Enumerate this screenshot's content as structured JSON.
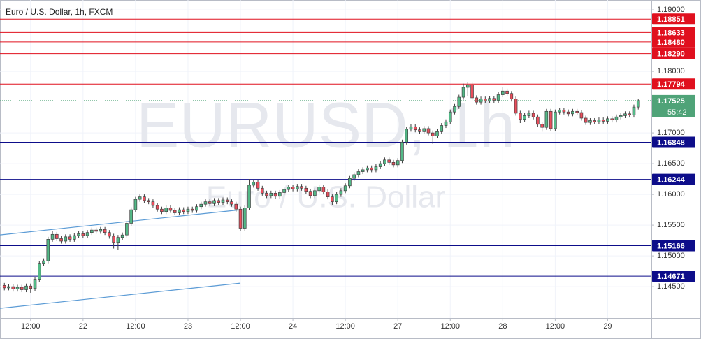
{
  "chart_data": {
    "type": "candlestick",
    "title": "Euro / U.S. Dollar, 1h, FXCM",
    "watermark": "EURUSD, 1h",
    "watermark_sub": "Euro / U.S. Dollar",
    "up_color": "#53b987",
    "down_color": "#eb4d5c",
    "ylim": [
      1.1399,
      1.1916
    ],
    "xlim": [
      -1,
      148
    ],
    "grid": true,
    "yticks": [
      {
        "value": 1.19,
        "label": "1.19000"
      },
      {
        "value": 1.18,
        "label": "1.18000"
      },
      {
        "value": 1.17,
        "label": "1.17000"
      },
      {
        "value": 1.165,
        "label": "1.16500"
      },
      {
        "value": 1.16,
        "label": "1.16000"
      },
      {
        "value": 1.155,
        "label": "1.15500"
      },
      {
        "value": 1.15,
        "label": "1.15000"
      },
      {
        "value": 1.145,
        "label": "1.14500"
      }
    ],
    "xticks": [
      {
        "value": 6,
        "label": "12:00"
      },
      {
        "value": 18,
        "label": "22"
      },
      {
        "value": 30,
        "label": "12:00"
      },
      {
        "value": 42,
        "label": "23"
      },
      {
        "value": 54,
        "label": "12:00"
      },
      {
        "value": 66,
        "label": "24"
      },
      {
        "value": 78,
        "label": "12:00"
      },
      {
        "value": 90,
        "label": "27"
      },
      {
        "value": 102,
        "label": "12:00"
      },
      {
        "value": 114,
        "label": "28"
      },
      {
        "value": 126,
        "label": "12:00"
      },
      {
        "value": 138,
        "label": "29"
      }
    ],
    "levels": [
      {
        "value": 1.18851,
        "label": "1.18851",
        "color": "#e0101e"
      },
      {
        "value": 1.18633,
        "label": "1.18633",
        "color": "#e0101e"
      },
      {
        "value": 1.1848,
        "label": "1.18480",
        "color": "#e0101e"
      },
      {
        "value": 1.1829,
        "label": "1.18290",
        "color": "#e0101e"
      },
      {
        "value": 1.17794,
        "label": "1.17794",
        "color": "#e0101e"
      },
      {
        "value": 1.16848,
        "label": "1.16848",
        "color": "#0d0d8a"
      },
      {
        "value": 1.16244,
        "label": "1.16244",
        "color": "#0d0d8a"
      },
      {
        "value": 1.15166,
        "label": "1.15166",
        "color": "#0d0d8a"
      },
      {
        "value": 1.14671,
        "label": "1.14671",
        "color": "#0d0d8a"
      }
    ],
    "last_price": 1.17525,
    "last_price_color": "#4fa378",
    "countdown": "55:42",
    "trendline_color": "#5b9bd5",
    "trendlines": [
      [
        [
          -1,
          1.15341
        ],
        [
          54,
          1.1575
        ]
      ],
      [
        [
          -1,
          1.14148
        ],
        [
          54,
          1.14557
        ]
      ]
    ],
    "candles": [
      [
        1.1452,
        1.1456,
        1.1444,
        1.1448
      ],
      [
        1.1448,
        1.1454,
        1.1444,
        1.145
      ],
      [
        1.145,
        1.1454,
        1.1442,
        1.1446
      ],
      [
        1.1446,
        1.1453,
        1.1442,
        1.1449
      ],
      [
        1.1449,
        1.1453,
        1.1441,
        1.1445
      ],
      [
        1.1445,
        1.1455,
        1.1441,
        1.1451
      ],
      [
        1.1451,
        1.1455,
        1.144,
        1.1447
      ],
      [
        1.1447,
        1.1466,
        1.1443,
        1.1462
      ],
      [
        1.1462,
        1.1492,
        1.1458,
        1.1488
      ],
      [
        1.1488,
        1.1496,
        1.1484,
        1.1492
      ],
      [
        1.1492,
        1.1531,
        1.1488,
        1.1527
      ],
      [
        1.1527,
        1.154,
        1.1523,
        1.1535
      ],
      [
        1.1535,
        1.1539,
        1.1524,
        1.1528
      ],
      [
        1.1528,
        1.1532,
        1.152,
        1.1524
      ],
      [
        1.1524,
        1.1535,
        1.152,
        1.1531
      ],
      [
        1.1531,
        1.1535,
        1.1523,
        1.1527
      ],
      [
        1.1527,
        1.1537,
        1.1523,
        1.1533
      ],
      [
        1.1533,
        1.154,
        1.1529,
        1.1536
      ],
      [
        1.1536,
        1.154,
        1.1529,
        1.1533
      ],
      [
        1.1533,
        1.1542,
        1.1529,
        1.1538
      ],
      [
        1.1538,
        1.1546,
        1.1534,
        1.1542
      ],
      [
        1.1542,
        1.1546,
        1.1536,
        1.154
      ],
      [
        1.154,
        1.1547,
        1.1536,
        1.1543
      ],
      [
        1.1543,
        1.1547,
        1.1534,
        1.1538
      ],
      [
        1.1538,
        1.1542,
        1.1528,
        1.1532
      ],
      [
        1.1532,
        1.1536,
        1.1512,
        1.1522
      ],
      [
        1.1522,
        1.1534,
        1.151,
        1.153
      ],
      [
        1.153,
        1.1538,
        1.1526,
        1.1534
      ],
      [
        1.1534,
        1.1557,
        1.153,
        1.1553
      ],
      [
        1.1553,
        1.1579,
        1.1549,
        1.1575
      ],
      [
        1.1575,
        1.1596,
        1.1571,
        1.1592
      ],
      [
        1.1592,
        1.16,
        1.1588,
        1.1596
      ],
      [
        1.1596,
        1.16,
        1.1586,
        1.159
      ],
      [
        1.159,
        1.1594,
        1.1584,
        1.1588
      ],
      [
        1.1588,
        1.1592,
        1.1578,
        1.1582
      ],
      [
        1.1582,
        1.1586,
        1.1572,
        1.1576
      ],
      [
        1.1576,
        1.158,
        1.1568,
        1.1572
      ],
      [
        1.1572,
        1.1582,
        1.1568,
        1.1578
      ],
      [
        1.1578,
        1.1582,
        1.157,
        1.1574
      ],
      [
        1.1574,
        1.1578,
        1.1566,
        1.157
      ],
      [
        1.157,
        1.1579,
        1.1566,
        1.1575
      ],
      [
        1.1575,
        1.1579,
        1.1568,
        1.1572
      ],
      [
        1.1572,
        1.158,
        1.1568,
        1.1576
      ],
      [
        1.1576,
        1.158,
        1.157,
        1.1574
      ],
      [
        1.1574,
        1.1584,
        1.157,
        1.158
      ],
      [
        1.158,
        1.1588,
        1.1576,
        1.1584
      ],
      [
        1.1584,
        1.1592,
        1.158,
        1.1588
      ],
      [
        1.1588,
        1.1592,
        1.1581,
        1.1585
      ],
      [
        1.1585,
        1.1594,
        1.1581,
        1.159
      ],
      [
        1.159,
        1.1594,
        1.1583,
        1.1587
      ],
      [
        1.1587,
        1.1595,
        1.1583,
        1.1591
      ],
      [
        1.1591,
        1.1595,
        1.1584,
        1.1588
      ],
      [
        1.1588,
        1.1592,
        1.158,
        1.1584
      ],
      [
        1.1584,
        1.1588,
        1.1572,
        1.1576
      ],
      [
        1.1576,
        1.158,
        1.1541,
        1.1545
      ],
      [
        1.1545,
        1.1582,
        1.1541,
        1.1578
      ],
      [
        1.1578,
        1.1625,
        1.1574,
        1.1615
      ],
      [
        1.1615,
        1.1624,
        1.1611,
        1.162
      ],
      [
        1.162,
        1.1624,
        1.1606,
        1.161
      ],
      [
        1.161,
        1.1614,
        1.1598,
        1.1602
      ],
      [
        1.1602,
        1.1606,
        1.1594,
        1.1598
      ],
      [
        1.1598,
        1.1606,
        1.1594,
        1.1602
      ],
      [
        1.1602,
        1.1606,
        1.1593,
        1.1597
      ],
      [
        1.1597,
        1.1607,
        1.1593,
        1.1603
      ],
      [
        1.1603,
        1.1612,
        1.1599,
        1.1608
      ],
      [
        1.1608,
        1.1616,
        1.1604,
        1.1612
      ],
      [
        1.1612,
        1.1616,
        1.1605,
        1.1609
      ],
      [
        1.1609,
        1.1617,
        1.1605,
        1.1613
      ],
      [
        1.1613,
        1.1617,
        1.1606,
        1.161
      ],
      [
        1.161,
        1.1614,
        1.1601,
        1.1605
      ],
      [
        1.1605,
        1.1609,
        1.1594,
        1.1598
      ],
      [
        1.1598,
        1.161,
        1.1594,
        1.1606
      ],
      [
        1.1606,
        1.1616,
        1.1602,
        1.1612
      ],
      [
        1.1612,
        1.1616,
        1.16,
        1.1604
      ],
      [
        1.1604,
        1.1608,
        1.1592,
        1.1596
      ],
      [
        1.1596,
        1.16,
        1.1582,
        1.1588
      ],
      [
        1.1588,
        1.1604,
        1.1584,
        1.16
      ],
      [
        1.16,
        1.161,
        1.1596,
        1.1606
      ],
      [
        1.1606,
        1.1618,
        1.1602,
        1.1614
      ],
      [
        1.1614,
        1.163,
        1.161,
        1.1626
      ],
      [
        1.1626,
        1.1636,
        1.1622,
        1.1632
      ],
      [
        1.1632,
        1.1641,
        1.1628,
        1.1637
      ],
      [
        1.1637,
        1.1644,
        1.1633,
        1.164
      ],
      [
        1.164,
        1.1647,
        1.1636,
        1.1643
      ],
      [
        1.1643,
        1.1647,
        1.1636,
        1.164
      ],
      [
        1.164,
        1.1649,
        1.1636,
        1.1645
      ],
      [
        1.1645,
        1.1654,
        1.1641,
        1.165
      ],
      [
        1.165,
        1.166,
        1.1646,
        1.1656
      ],
      [
        1.1656,
        1.166,
        1.1648,
        1.1652
      ],
      [
        1.1652,
        1.1656,
        1.1644,
        1.1648
      ],
      [
        1.1648,
        1.1659,
        1.1644,
        1.1655
      ],
      [
        1.1655,
        1.1689,
        1.1651,
        1.1685
      ],
      [
        1.1685,
        1.171,
        1.1681,
        1.1706
      ],
      [
        1.1706,
        1.1714,
        1.1702,
        1.171
      ],
      [
        1.171,
        1.1714,
        1.1701,
        1.1705
      ],
      [
        1.1705,
        1.1709,
        1.1698,
        1.1702
      ],
      [
        1.1702,
        1.1711,
        1.1698,
        1.1707
      ],
      [
        1.1707,
        1.1711,
        1.1696,
        1.17
      ],
      [
        1.17,
        1.1704,
        1.1682,
        1.1695
      ],
      [
        1.1695,
        1.1706,
        1.1691,
        1.1702
      ],
      [
        1.1702,
        1.1716,
        1.1698,
        1.1712
      ],
      [
        1.1712,
        1.1722,
        1.1708,
        1.1718
      ],
      [
        1.1718,
        1.1738,
        1.1714,
        1.1734
      ],
      [
        1.1734,
        1.1747,
        1.173,
        1.1743
      ],
      [
        1.1743,
        1.1762,
        1.1739,
        1.1758
      ],
      [
        1.1758,
        1.178,
        1.1754,
        1.1774
      ],
      [
        1.1774,
        1.1782,
        1.176,
        1.1778
      ],
      [
        1.1778,
        1.1782,
        1.1753,
        1.1757
      ],
      [
        1.1757,
        1.1761,
        1.1746,
        1.175
      ],
      [
        1.175,
        1.1759,
        1.1746,
        1.1755
      ],
      [
        1.1755,
        1.1759,
        1.1748,
        1.1752
      ],
      [
        1.1752,
        1.176,
        1.1748,
        1.1756
      ],
      [
        1.1756,
        1.176,
        1.1749,
        1.1753
      ],
      [
        1.1753,
        1.1766,
        1.1749,
        1.1762
      ],
      [
        1.1762,
        1.1774,
        1.1758,
        1.1768
      ],
      [
        1.1768,
        1.1772,
        1.176,
        1.1764
      ],
      [
        1.1764,
        1.1768,
        1.1751,
        1.1755
      ],
      [
        1.1755,
        1.1759,
        1.1728,
        1.1732
      ],
      [
        1.1732,
        1.1736,
        1.1716,
        1.1722
      ],
      [
        1.1722,
        1.1732,
        1.1718,
        1.1728
      ],
      [
        1.1728,
        1.1736,
        1.1724,
        1.1732
      ],
      [
        1.1732,
        1.1736,
        1.1722,
        1.1726
      ],
      [
        1.1726,
        1.173,
        1.171,
        1.1714
      ],
      [
        1.1714,
        1.1718,
        1.1702,
        1.1709
      ],
      [
        1.1709,
        1.1739,
        1.1705,
        1.1735
      ],
      [
        1.1735,
        1.1739,
        1.1703,
        1.1707
      ],
      [
        1.1707,
        1.1738,
        1.1703,
        1.1734
      ],
      [
        1.1734,
        1.1741,
        1.173,
        1.1737
      ],
      [
        1.1737,
        1.1741,
        1.173,
        1.1734
      ],
      [
        1.1734,
        1.1738,
        1.1727,
        1.1731
      ],
      [
        1.1731,
        1.1739,
        1.1727,
        1.1735
      ],
      [
        1.1735,
        1.1739,
        1.1729,
        1.1733
      ],
      [
        1.1733,
        1.1737,
        1.172,
        1.1724
      ],
      [
        1.1724,
        1.1728,
        1.1713,
        1.1717
      ],
      [
        1.1717,
        1.1724,
        1.1713,
        1.172
      ],
      [
        1.172,
        1.1724,
        1.1714,
        1.1718
      ],
      [
        1.1718,
        1.1725,
        1.1714,
        1.1721
      ],
      [
        1.1721,
        1.1725,
        1.1715,
        1.1719
      ],
      [
        1.1719,
        1.1727,
        1.1715,
        1.1723
      ],
      [
        1.1723,
        1.1727,
        1.1717,
        1.1721
      ],
      [
        1.1721,
        1.173,
        1.1717,
        1.1726
      ],
      [
        1.1726,
        1.1732,
        1.1722,
        1.1728
      ],
      [
        1.1728,
        1.1735,
        1.1724,
        1.1731
      ],
      [
        1.1731,
        1.1735,
        1.1725,
        1.1729
      ],
      [
        1.1729,
        1.1746,
        1.1725,
        1.1742
      ],
      [
        1.1742,
        1.17555,
        1.1738,
        1.17525
      ]
    ]
  }
}
